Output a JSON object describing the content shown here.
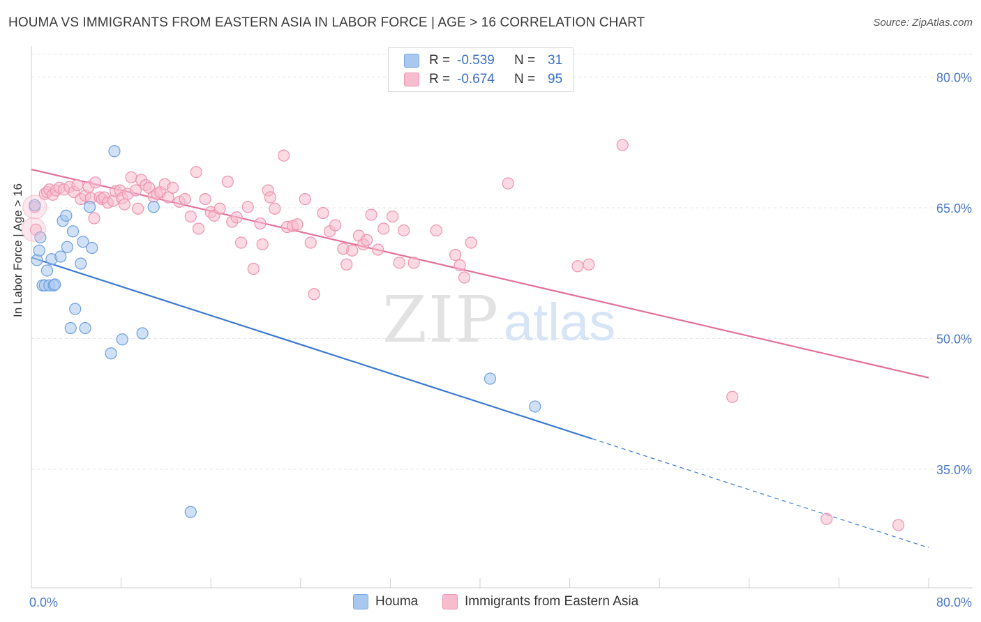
{
  "title": "HOUMA VS IMMIGRANTS FROM EASTERN ASIA IN LABOR FORCE | AGE > 16 CORRELATION CHART",
  "source": "Source: ZipAtlas.com",
  "watermark": {
    "zip": "ZIP",
    "atlas": "atlas"
  },
  "legend": {
    "rows": [
      {
        "r_key": "R =",
        "r_val": "-0.539",
        "n_key": "N =",
        "n_val": "31",
        "color": "#a9c8f0",
        "border": "#7aa6e0"
      },
      {
        "r_key": "R =",
        "r_val": "-0.674",
        "n_key": "N =",
        "n_val": "95",
        "color": "#f7bccd",
        "border": "#ee93b0"
      }
    ]
  },
  "bottom_legend": {
    "houma": "Houma",
    "eastern_asia": "Immigrants from Eastern Asia"
  },
  "chart_data": {
    "type": "scatter",
    "title": "HOUMA VS IMMIGRANTS FROM EASTERN ASIA IN LABOR FORCE | AGE > 16 CORRELATION CHART",
    "xlabel": "",
    "ylabel": "In Labor Force | Age > 16",
    "xlim": [
      0,
      80
    ],
    "ylim": [
      21.4,
      82.6
    ],
    "x_tick_labels": [
      "0.0%",
      "80.0%"
    ],
    "y_ticks": [
      35,
      50,
      65,
      80
    ],
    "y_tick_labels": [
      "35.0%",
      "50.0%",
      "65.0%",
      "80.0%"
    ],
    "grid": true,
    "legend_position": "top-center",
    "series": [
      {
        "name": "Houma",
        "color": "#a9c8f0",
        "stroke": "#6f9fdd",
        "line_color": "#3a78d2",
        "trend": {
          "x0": 0,
          "y0": 59.3,
          "x1": 50,
          "y1": 38.5,
          "dash_to_x": 80,
          "dash_to_y": 26.0
        },
        "points": [
          [
            0.3,
            65.3
          ],
          [
            0.5,
            59.0
          ],
          [
            0.8,
            61.6
          ],
          [
            0.7,
            60.1
          ],
          [
            1.0,
            56.1
          ],
          [
            1.2,
            56.1
          ],
          [
            1.4,
            57.8
          ],
          [
            1.6,
            56.1
          ],
          [
            1.8,
            59.1
          ],
          [
            2.0,
            56.1
          ],
          [
            2.1,
            56.2
          ],
          [
            2.6,
            59.4
          ],
          [
            2.8,
            63.5
          ],
          [
            3.1,
            64.1
          ],
          [
            3.2,
            60.5
          ],
          [
            3.5,
            51.2
          ],
          [
            3.7,
            62.3
          ],
          [
            3.9,
            53.4
          ],
          [
            4.4,
            58.6
          ],
          [
            4.6,
            61.1
          ],
          [
            4.8,
            51.2
          ],
          [
            5.2,
            65.1
          ],
          [
            5.4,
            60.4
          ],
          [
            7.1,
            48.3
          ],
          [
            7.4,
            71.5
          ],
          [
            8.1,
            49.9
          ],
          [
            9.9,
            50.6
          ],
          [
            10.9,
            65.1
          ],
          [
            14.2,
            30.1
          ],
          [
            40.9,
            45.4
          ],
          [
            44.9,
            42.2
          ]
        ]
      },
      {
        "name": "Immigrants from Eastern Asia",
        "color": "#f7bccd",
        "stroke": "#ee93b0",
        "line_color": "#e4709a",
        "trend": {
          "x0": 0,
          "y0": 69.4,
          "x1": 80,
          "y1": 45.5
        },
        "points": [
          [
            0.3,
            65.1
          ],
          [
            0.4,
            62.5
          ],
          [
            1.2,
            66.6
          ],
          [
            1.4,
            66.8
          ],
          [
            1.6,
            67.1
          ],
          [
            1.9,
            66.5
          ],
          [
            2.2,
            67.0
          ],
          [
            2.5,
            67.3
          ],
          [
            2.9,
            67.1
          ],
          [
            3.4,
            67.4
          ],
          [
            3.8,
            66.8
          ],
          [
            4.1,
            67.6
          ],
          [
            4.4,
            66.0
          ],
          [
            4.8,
            66.4
          ],
          [
            5.1,
            67.4
          ],
          [
            5.3,
            66.1
          ],
          [
            5.7,
            67.9
          ],
          [
            5.6,
            63.8
          ],
          [
            6.1,
            66.2
          ],
          [
            6.3,
            66.0
          ],
          [
            6.5,
            66.2
          ],
          [
            6.8,
            65.6
          ],
          [
            7.3,
            65.8
          ],
          [
            7.5,
            66.9
          ],
          [
            7.9,
            67.0
          ],
          [
            8.1,
            66.1
          ],
          [
            8.3,
            65.4
          ],
          [
            8.6,
            66.6
          ],
          [
            8.9,
            68.5
          ],
          [
            9.3,
            67.0
          ],
          [
            9.5,
            64.9
          ],
          [
            9.8,
            68.2
          ],
          [
            10.2,
            67.6
          ],
          [
            10.5,
            67.3
          ],
          [
            10.9,
            66.3
          ],
          [
            11.2,
            66.6
          ],
          [
            11.5,
            66.8
          ],
          [
            11.9,
            67.7
          ],
          [
            12.2,
            66.2
          ],
          [
            12.6,
            67.3
          ],
          [
            13.2,
            65.7
          ],
          [
            13.7,
            66.0
          ],
          [
            14.2,
            64.0
          ],
          [
            14.7,
            69.1
          ],
          [
            14.9,
            62.6
          ],
          [
            15.5,
            66.0
          ],
          [
            16.0,
            64.5
          ],
          [
            16.3,
            64.1
          ],
          [
            16.8,
            64.9
          ],
          [
            17.5,
            68.0
          ],
          [
            17.9,
            63.4
          ],
          [
            18.3,
            63.9
          ],
          [
            18.7,
            61.0
          ],
          [
            19.3,
            65.1
          ],
          [
            19.8,
            58.0
          ],
          [
            20.4,
            63.2
          ],
          [
            20.6,
            60.8
          ],
          [
            21.1,
            67.0
          ],
          [
            21.3,
            66.2
          ],
          [
            21.7,
            64.9
          ],
          [
            22.5,
            71.0
          ],
          [
            22.8,
            62.8
          ],
          [
            23.3,
            62.9
          ],
          [
            23.7,
            63.1
          ],
          [
            24.4,
            66.0
          ],
          [
            24.9,
            61.0
          ],
          [
            25.2,
            55.1
          ],
          [
            26.0,
            64.4
          ],
          [
            26.6,
            62.3
          ],
          [
            27.1,
            63.0
          ],
          [
            27.8,
            60.3
          ],
          [
            28.1,
            58.5
          ],
          [
            28.6,
            60.1
          ],
          [
            29.2,
            61.8
          ],
          [
            29.6,
            60.8
          ],
          [
            29.9,
            61.3
          ],
          [
            30.3,
            64.2
          ],
          [
            30.9,
            60.2
          ],
          [
            31.4,
            62.6
          ],
          [
            32.2,
            64.0
          ],
          [
            32.8,
            58.7
          ],
          [
            33.2,
            62.4
          ],
          [
            34.1,
            58.7
          ],
          [
            36.1,
            62.4
          ],
          [
            37.8,
            59.6
          ],
          [
            38.2,
            58.4
          ],
          [
            38.6,
            57.0
          ],
          [
            39.2,
            61.0
          ],
          [
            42.5,
            67.8
          ],
          [
            48.7,
            58.3
          ],
          [
            49.7,
            58.5
          ],
          [
            52.7,
            72.2
          ],
          [
            62.5,
            43.3
          ],
          [
            70.9,
            29.3
          ],
          [
            77.3,
            28.6
          ]
        ]
      }
    ]
  }
}
